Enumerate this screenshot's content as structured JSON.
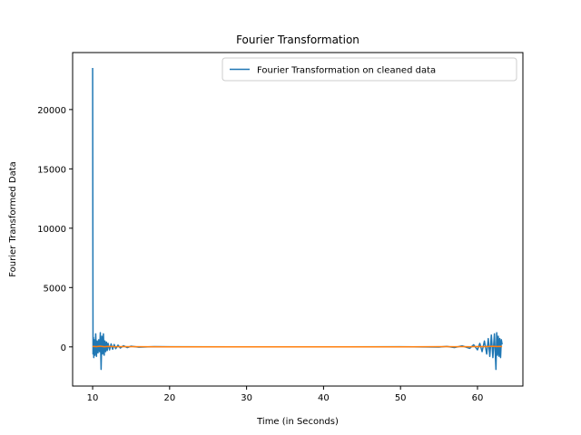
{
  "chart_data": {
    "type": "line",
    "title": "Fourier Transformation",
    "xlabel": "Time (in Seconds)",
    "ylabel": "Fourier Transformed Data",
    "xlim": [
      7.4,
      65.9
    ],
    "ylim": [
      -3300,
      24800
    ],
    "xticks": [
      10,
      20,
      30,
      40,
      50,
      60
    ],
    "yticks": [
      0,
      5000,
      10000,
      15000,
      20000
    ],
    "ytick_labels": [
      "0",
      "5000",
      "10000",
      "15000",
      "20000"
    ],
    "grid": false,
    "legend": {
      "position": "top-right",
      "entries": [
        "Fourier Transformation on cleaned data"
      ]
    },
    "series": [
      {
        "name": "Fourier Transformation on cleaned data",
        "color": "#1f77b4",
        "x": [
          10.0,
          10.05,
          10.1,
          10.15,
          10.2,
          10.3,
          10.4,
          10.5,
          10.6,
          10.7,
          10.8,
          10.9,
          11.0,
          11.1,
          11.2,
          11.3,
          11.4,
          11.5,
          11.6,
          11.7,
          11.8,
          11.9,
          12.0,
          12.2,
          12.4,
          12.6,
          12.8,
          13.0,
          13.3,
          13.6,
          14.0,
          14.5,
          15.0,
          16.0,
          18.0,
          20.0,
          30.0,
          40.0,
          50.0,
          55.0,
          56.0,
          57.0,
          58.0,
          59.0,
          59.5,
          60.0,
          60.3,
          60.6,
          60.9,
          61.2,
          61.4,
          61.6,
          61.8,
          62.0,
          62.2,
          62.4,
          62.5,
          62.6,
          62.7,
          62.8,
          62.9,
          63.0,
          63.1,
          63.2
        ],
        "y": [
          23500,
          -600,
          800,
          -900,
          600,
          -700,
          1100,
          -800,
          500,
          -500,
          600,
          -400,
          1200,
          -1900,
          900,
          -600,
          1100,
          -700,
          500,
          -400,
          400,
          -300,
          300,
          -250,
          250,
          -200,
          200,
          -150,
          150,
          -100,
          100,
          -60,
          60,
          -30,
          20,
          10,
          0,
          0,
          10,
          -20,
          40,
          -60,
          90,
          -120,
          180,
          -250,
          300,
          -400,
          500,
          -600,
          700,
          -800,
          1000,
          -900,
          1100,
          -1900,
          1200,
          -700,
          900,
          -800,
          700,
          -900,
          600,
          200
        ]
      },
      {
        "name": "",
        "color": "#ff7f0e",
        "x": [
          10.0,
          10.5,
          11.0,
          11.5,
          12.0,
          13.0,
          14.0,
          20.0,
          30.0,
          40.0,
          50.0,
          56.0,
          57.0,
          58.0,
          59.0,
          60.0,
          61.0,
          62.0,
          62.5,
          63.0,
          63.2
        ],
        "y": [
          40,
          20,
          60,
          10,
          40,
          10,
          20,
          0,
          0,
          0,
          0,
          20,
          10,
          20,
          10,
          30,
          20,
          50,
          30,
          40,
          20
        ]
      }
    ]
  }
}
